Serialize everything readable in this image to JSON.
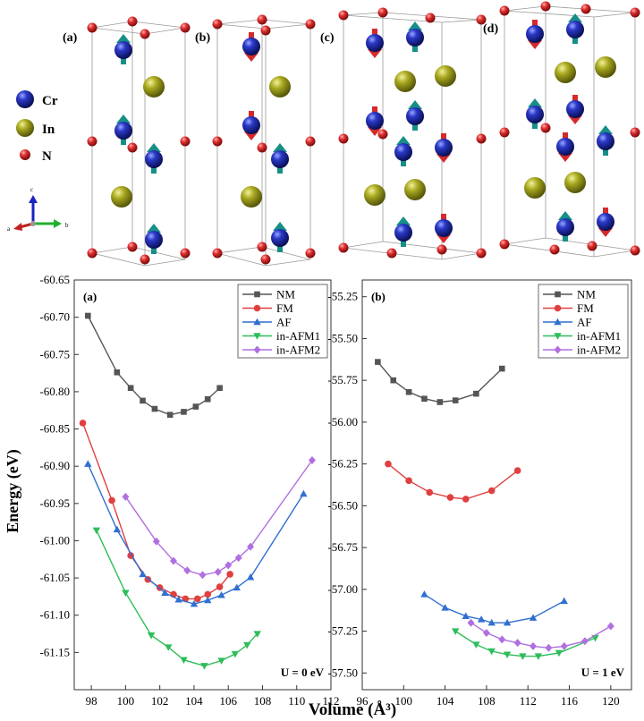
{
  "structures": {
    "panel_labels": [
      "(a)",
      "(b)",
      "(c)",
      "(d)"
    ],
    "legend": [
      {
        "label": "Cr",
        "color": "#1f2a9c"
      },
      {
        "label": "In",
        "color": "#8a8a12"
      },
      {
        "label": "N",
        "color": "#d42a2a"
      }
    ],
    "axes_labels": {
      "a": "a",
      "b": "b",
      "c": "c"
    },
    "spin_up_color": "#168f86",
    "spin_down_color": "#d42a2a"
  },
  "shared_ylabel": "Energy (eV)",
  "shared_xlabel": "Volume (Å³)",
  "colors": {
    "NM": "#555555",
    "FM": "#e04040",
    "AF": "#2f6fd0",
    "in-AFM1": "#2ebd5a",
    "in-AFM2": "#b070e0"
  },
  "chart_data": [
    {
      "type": "line",
      "panel_label": "(a)",
      "annotation": "U = 0 eV",
      "xlabel": "Volume (Å³)",
      "ylabel": "Energy (eV)",
      "xlim": [
        97,
        112
      ],
      "ylim": [
        -61.2,
        -60.65
      ],
      "xticks": [
        "98",
        "100",
        "102",
        "104",
        "106",
        "108",
        "110",
        "112"
      ],
      "yticks": [
        "-60.65",
        "-60.70",
        "-60.75",
        "-60.80",
        "-60.85",
        "-60.90",
        "-60.95",
        "-61.00",
        "-61.05",
        "-61.10",
        "-61.15"
      ],
      "legend_position": "top-right",
      "series": [
        {
          "name": "NM",
          "marker": "square",
          "x": [
            97.8,
            99.5,
            100.3,
            101.0,
            101.7,
            102.6,
            103.4,
            104.1,
            104.8,
            105.5
          ],
          "y": [
            -60.698,
            -60.774,
            -60.795,
            -60.812,
            -60.823,
            -60.831,
            -60.827,
            -60.82,
            -60.81,
            -60.795
          ]
        },
        {
          "name": "FM",
          "marker": "circle",
          "x": [
            97.5,
            99.2,
            100.3,
            101.3,
            102.0,
            102.8,
            103.5,
            104.2,
            104.8,
            105.5,
            106.1
          ],
          "y": [
            -60.842,
            -60.946,
            -61.02,
            -61.052,
            -61.063,
            -61.072,
            -61.078,
            -61.078,
            -61.072,
            -61.062,
            -61.045
          ]
        },
        {
          "name": "AF",
          "marker": "triangle-up",
          "x": [
            97.8,
            99.5,
            101.0,
            102.3,
            103.1,
            104.0,
            104.8,
            105.6,
            106.5,
            107.3,
            110.4
          ],
          "y": [
            -60.897,
            -60.985,
            -61.045,
            -61.07,
            -61.079,
            -61.085,
            -61.08,
            -61.073,
            -61.063,
            -61.049,
            -60.937
          ]
        },
        {
          "name": "in-AFM1",
          "marker": "triangle-down",
          "x": [
            98.3,
            100.0,
            101.5,
            102.5,
            103.4,
            104.6,
            105.6,
            106.4,
            107.1,
            107.7
          ],
          "y": [
            -60.986,
            -61.07,
            -61.127,
            -61.143,
            -61.16,
            -61.168,
            -61.161,
            -61.152,
            -61.14,
            -61.125
          ]
        },
        {
          "name": "in-AFM2",
          "marker": "diamond",
          "x": [
            100.0,
            101.8,
            102.8,
            103.6,
            104.5,
            105.4,
            106.0,
            106.6,
            107.3,
            110.9
          ],
          "y": [
            -60.941,
            -61.001,
            -61.027,
            -61.04,
            -61.046,
            -61.042,
            -61.033,
            -61.023,
            -61.008,
            -60.892
          ]
        }
      ]
    },
    {
      "type": "line",
      "panel_label": "(b)",
      "annotation": "U = 1 eV",
      "xlabel": "Volume (Å³)",
      "ylabel": "Energy (eV)",
      "xlim": [
        96,
        122
      ],
      "ylim": [
        -57.6,
        -55.15
      ],
      "xticks": [
        "96",
        "100",
        "104",
        "108",
        "112",
        "116",
        "120"
      ],
      "yticks": [
        "-55.25",
        "-55.50",
        "-55.75",
        "-56.00",
        "-56.25",
        "-56.50",
        "-56.75",
        "-57.00",
        "-57.25",
        "-57.50"
      ],
      "legend_position": "top-right",
      "series": [
        {
          "name": "NM",
          "marker": "square",
          "x": [
            97.5,
            99.0,
            100.5,
            102.0,
            103.5,
            105.0,
            107.0,
            109.5
          ],
          "y": [
            -55.64,
            -55.75,
            -55.82,
            -55.86,
            -55.88,
            -55.87,
            -55.83,
            -55.68
          ]
        },
        {
          "name": "FM",
          "marker": "circle",
          "x": [
            98.5,
            100.5,
            102.5,
            104.5,
            106.0,
            108.5,
            111.0
          ],
          "y": [
            -56.25,
            -56.35,
            -56.42,
            -56.45,
            -56.46,
            -56.41,
            -56.29
          ]
        },
        {
          "name": "AF",
          "marker": "triangle-up",
          "x": [
            102.0,
            104.0,
            106.0,
            107.5,
            108.5,
            110.0,
            112.5,
            115.5
          ],
          "y": [
            -57.03,
            -57.11,
            -57.16,
            -57.18,
            -57.2,
            -57.2,
            -57.17,
            -57.07
          ]
        },
        {
          "name": "in-AFM1",
          "marker": "triangle-down",
          "x": [
            105.0,
            107.0,
            108.5,
            110.0,
            111.5,
            113.0,
            115.0,
            118.5
          ],
          "y": [
            -57.25,
            -57.33,
            -57.37,
            -57.39,
            -57.4,
            -57.4,
            -57.38,
            -57.29
          ]
        },
        {
          "name": "in-AFM2",
          "marker": "diamond",
          "x": [
            106.5,
            108.0,
            109.5,
            111.0,
            112.5,
            114.0,
            115.5,
            117.5,
            120.0
          ],
          "y": [
            -57.2,
            -57.26,
            -57.3,
            -57.32,
            -57.34,
            -57.35,
            -57.34,
            -57.31,
            -57.22
          ]
        }
      ]
    }
  ]
}
